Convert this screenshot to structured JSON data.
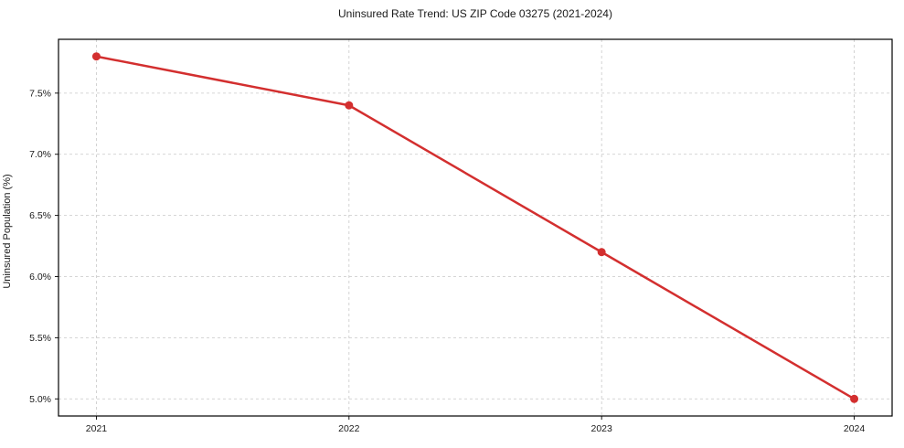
{
  "chart_data": {
    "type": "line",
    "title": "Uninsured Rate Trend: US ZIP Code 03275 (2021-2024)",
    "xlabel": "",
    "ylabel": "Uninsured Population (%)",
    "x": [
      2021,
      2022,
      2023,
      2024
    ],
    "values": [
      7.8,
      7.4,
      6.2,
      5.0
    ],
    "xlim": [
      2020.85,
      2024.15
    ],
    "ylim": [
      4.86,
      7.94
    ],
    "xticks": [
      2021,
      2022,
      2023,
      2024
    ],
    "xtick_labels": [
      "2021",
      "2022",
      "2023",
      "2024"
    ],
    "yticks": [
      5.0,
      5.5,
      6.0,
      6.5,
      7.0,
      7.5
    ],
    "ytick_labels": [
      "5.0%",
      "5.5%",
      "6.0%",
      "6.5%",
      "7.0%",
      "7.5%"
    ],
    "grid": true,
    "grid_style": "dashed",
    "legend": null,
    "line_color": "#d32f2f",
    "marker": "circle",
    "grid_color": "#c8c8c8",
    "spine_color": "#000000"
  }
}
